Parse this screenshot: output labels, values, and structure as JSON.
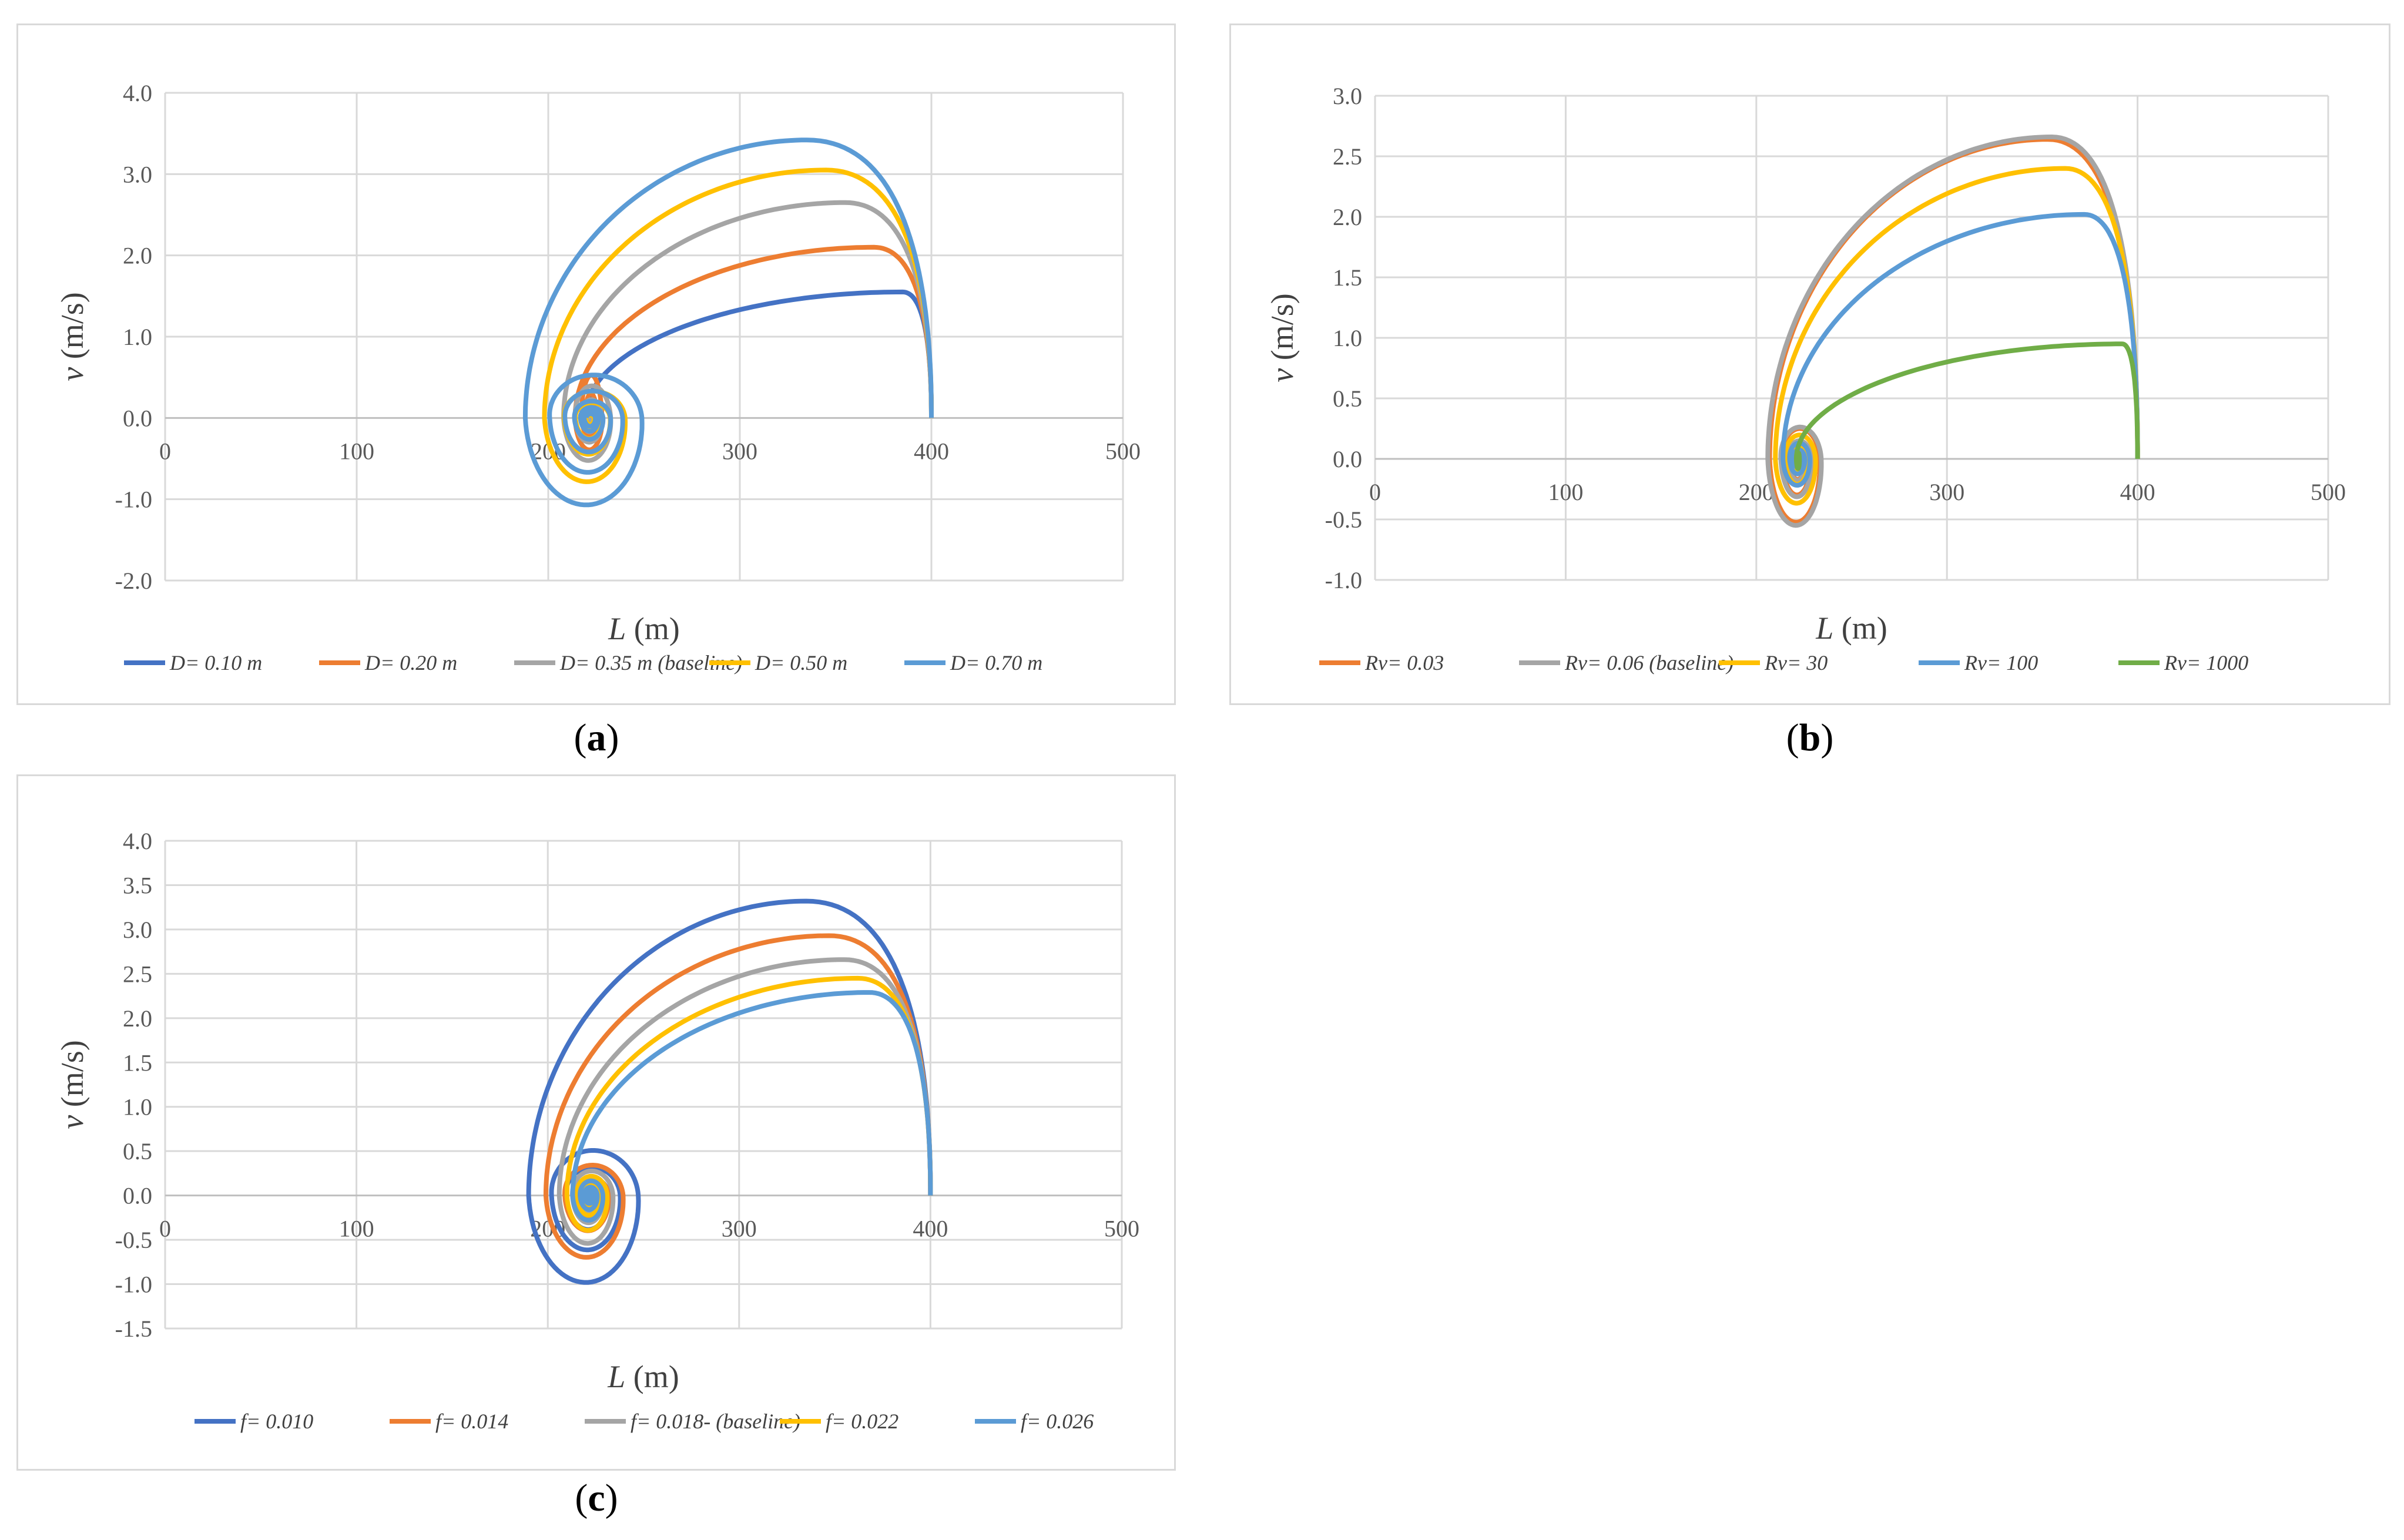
{
  "captions": {
    "a": "a",
    "b": "b",
    "c": "c"
  },
  "chart_data": [
    {
      "id": "a",
      "type": "line",
      "title": "",
      "xlabel_var": "L",
      "xlabel_unit": " (m)",
      "ylabel_var": "v",
      "ylabel_unit": " (m/s)",
      "xlim": [
        0,
        500
      ],
      "ylim": [
        -2.0,
        4.0
      ],
      "xticks": [
        0,
        100,
        200,
        300,
        400,
        500
      ],
      "xtick_labels": [
        "0",
        "100",
        "200",
        "300",
        "400",
        "500"
      ],
      "yticks": [
        -2.0,
        -1.0,
        0.0,
        1.0,
        2.0,
        3.0,
        4.0
      ],
      "ytick_labels": [
        "-2.0",
        "-1.0",
        "0.0",
        "1.0",
        "2.0",
        "3.0",
        "4.0"
      ],
      "grid": true,
      "legend_position": "bottom",
      "series": [
        {
          "name": "D= 0.10 m",
          "color": "#4472C4",
          "peak": [
            385,
            1.55
          ],
          "min_x": 219,
          "min_y": -0.25,
          "max_y_loop": 0.45,
          "turns": 5
        },
        {
          "name": "D= 0.20 m",
          "color": "#ED7D31",
          "peak": [
            370,
            2.1
          ],
          "min_x": 214,
          "min_y": -0.45,
          "max_y_loop": 0.8,
          "turns": 5
        },
        {
          "name": "D= 0.35 m (baseline)",
          "color": "#A5A5A5",
          "peak": [
            355,
            2.65
          ],
          "min_x": 208,
          "min_y": -0.6,
          "max_y_loop": 0.6,
          "turns": 5
        },
        {
          "name": "D= 0.50 m",
          "color": "#FFC000",
          "peak": [
            345,
            3.05
          ],
          "min_x": 198,
          "min_y": -0.9,
          "max_y_loop": 0.5,
          "turns": 5
        },
        {
          "name": "D= 0.70 m",
          "color": "#5B9BD5",
          "peak": [
            335,
            3.42
          ],
          "min_x": 188,
          "min_y": -1.2,
          "max_y_loop": 0.75,
          "turns": 6
        }
      ]
    },
    {
      "id": "b",
      "type": "line",
      "title": "",
      "xlabel_var": "L",
      "xlabel_unit": " (m)",
      "ylabel_var": "v",
      "ylabel_unit": " (m/s)",
      "xlim": [
        0,
        500
      ],
      "ylim": [
        -1.0,
        3.0
      ],
      "xticks": [
        0,
        100,
        200,
        300,
        400,
        500
      ],
      "xtick_labels": [
        "0",
        "100",
        "200",
        "300",
        "400",
        "500"
      ],
      "yticks": [
        -1.0,
        -0.5,
        0.0,
        0.5,
        1.0,
        1.5,
        2.0,
        2.5,
        3.0
      ],
      "ytick_labels": [
        "-1.0",
        "-0.5",
        "0.0",
        "0.5",
        "1.0",
        "1.5",
        "2.0",
        "2.5",
        "3.0"
      ],
      "grid": true,
      "legend_position": "bottom",
      "series": [
        {
          "name": "Rv= 0.03",
          "color": "#ED7D31",
          "peak": [
            353,
            2.64
          ],
          "min_x": 207,
          "min_y": -0.6,
          "max_y_loop": 0.38,
          "turns": 5
        },
        {
          "name": "Rv= 0.06 (baseline)",
          "color": "#A5A5A5",
          "peak": [
            355,
            2.66
          ],
          "min_x": 206,
          "min_y": -0.63,
          "max_y_loop": 0.4,
          "turns": 5
        },
        {
          "name": "Rv= 30",
          "color": "#FFC000",
          "peak": [
            362,
            2.4
          ],
          "min_x": 210,
          "min_y": -0.42,
          "max_y_loop": 0.3,
          "turns": 5
        },
        {
          "name": "Rv= 100",
          "color": "#5B9BD5",
          "peak": [
            372,
            2.02
          ],
          "min_x": 214,
          "min_y": -0.25,
          "max_y_loop": 0.2,
          "turns": 5
        },
        {
          "name": "Rv= 1000",
          "color": "#70AD47",
          "peak": [
            392,
            0.95
          ],
          "min_x": 221,
          "min_y": -0.1,
          "max_y_loop": 0.1,
          "turns": 3
        }
      ]
    },
    {
      "id": "c",
      "type": "line",
      "title": "",
      "xlabel_var": "L",
      "xlabel_unit": " (m)",
      "ylabel_var": "v",
      "ylabel_unit": " (m/s)",
      "xlim": [
        0,
        500
      ],
      "ylim": [
        -1.5,
        4.0
      ],
      "xticks": [
        0,
        100,
        200,
        300,
        400,
        500
      ],
      "xtick_labels": [
        "0",
        "100",
        "200",
        "300",
        "400",
        "500"
      ],
      "yticks": [
        -1.5,
        -1.0,
        -0.5,
        0.0,
        0.5,
        1.0,
        1.5,
        2.0,
        2.5,
        3.0,
        3.5,
        4.0
      ],
      "ytick_labels": [
        "-1.5",
        "-1.0",
        "-0.5",
        "0.0",
        "0.5",
        "1.0",
        "1.5",
        "2.0",
        "2.5",
        "3.0",
        "3.5",
        "4.0"
      ],
      "grid": true,
      "legend_position": "bottom",
      "series": [
        {
          "name": "f= 0.010",
          "color": "#4472C4",
          "peak": [
            335,
            3.32
          ],
          "min_x": 190,
          "min_y": -1.1,
          "max_y_loop": 0.72,
          "turns": 6
        },
        {
          "name": "f= 0.014",
          "color": "#ED7D31",
          "peak": [
            347,
            2.93
          ],
          "min_x": 199,
          "min_y": -0.8,
          "max_y_loop": 0.52,
          "turns": 5
        },
        {
          "name": "f= 0.018- (baseline)",
          "color": "#A5A5A5",
          "peak": [
            355,
            2.66
          ],
          "min_x": 206,
          "min_y": -0.62,
          "max_y_loop": 0.42,
          "turns": 5
        },
        {
          "name": "f= 0.022",
          "color": "#FFC000",
          "peak": [
            362,
            2.45
          ],
          "min_x": 210,
          "min_y": -0.45,
          "max_y_loop": 0.33,
          "turns": 5
        },
        {
          "name": "f= 0.026",
          "color": "#5B9BD5",
          "peak": [
            368,
            2.29
          ],
          "min_x": 213,
          "min_y": -0.32,
          "max_y_loop": 0.25,
          "turns": 5
        }
      ]
    }
  ]
}
